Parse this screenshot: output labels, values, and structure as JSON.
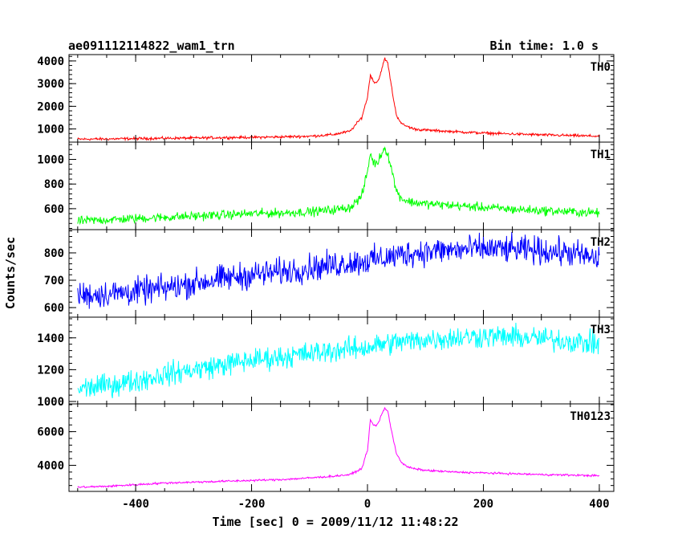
{
  "header": {
    "title": "ae091112114822_wam1_trn",
    "bin_time": "Bin time: 1.0 s"
  },
  "chart_data": {
    "type": "line",
    "xlabel": "Time [sec] 0 = 2009/11/12 11:48:22",
    "ylabel": "Counts/sec",
    "xlim": [
      -515,
      425
    ],
    "x_ticks": [
      -400,
      -200,
      0,
      200,
      400
    ],
    "x": [
      -500,
      -450,
      -400,
      -350,
      -300,
      -250,
      -200,
      -150,
      -100,
      -60,
      -30,
      -10,
      0,
      5,
      10,
      15,
      20,
      25,
      30,
      35,
      40,
      45,
      50,
      60,
      70,
      80,
      100,
      150,
      200,
      250,
      300,
      350,
      400
    ],
    "panels": [
      {
        "name": "TH0",
        "color": "#ff0000",
        "ylim": [
          420,
          4280
        ],
        "y_ticks": [
          1000,
          2000,
          3000,
          4000
        ],
        "noise": 45,
        "values": [
          550,
          560,
          575,
          590,
          600,
          620,
          630,
          650,
          680,
          750,
          900,
          1500,
          2400,
          3400,
          3100,
          3050,
          3200,
          3700,
          4100,
          3900,
          3100,
          2300,
          1600,
          1200,
          1100,
          1000,
          950,
          880,
          820,
          780,
          740,
          710,
          680
        ]
      },
      {
        "name": "TH1",
        "color": "#00ff00",
        "ylim": [
          430,
          1140
        ],
        "y_ticks": [
          600,
          800,
          1000
        ],
        "noise": 28,
        "values": [
          500,
          510,
          520,
          530,
          540,
          550,
          560,
          565,
          575,
          590,
          610,
          700,
          900,
          1050,
          980,
          960,
          1000,
          1060,
          1090,
          1050,
          950,
          850,
          740,
          680,
          660,
          650,
          640,
          625,
          610,
          595,
          585,
          575,
          565
        ]
      },
      {
        "name": "TH2",
        "color": "#0000ff",
        "ylim": [
          565,
          885
        ],
        "y_ticks": [
          600,
          700,
          800
        ],
        "noise": 38,
        "values": [
          645,
          650,
          658,
          670,
          690,
          705,
          720,
          730,
          745,
          755,
          765,
          768,
          770,
          772,
          775,
          776,
          778,
          780,
          782,
          784,
          786,
          788,
          790,
          795,
          798,
          800,
          805,
          810,
          815,
          812,
          808,
          800,
          775
        ]
      },
      {
        "name": "TH3",
        "color": "#00ffff",
        "ylim": [
          985,
          1530
        ],
        "y_ticks": [
          1000,
          1200,
          1400
        ],
        "noise": 55,
        "values": [
          1080,
          1100,
          1130,
          1170,
          1200,
          1230,
          1260,
          1280,
          1300,
          1320,
          1330,
          1335,
          1340,
          1345,
          1350,
          1352,
          1355,
          1360,
          1362,
          1365,
          1368,
          1370,
          1372,
          1375,
          1378,
          1380,
          1390,
          1400,
          1410,
          1405,
          1395,
          1380,
          1360
        ]
      },
      {
        "name": "TH0123",
        "color": "#ff00ff",
        "ylim": [
          2450,
          7650
        ],
        "y_ticks": [
          4000,
          6000
        ],
        "noise": 45,
        "values": [
          2700,
          2750,
          2850,
          2950,
          3000,
          3050,
          3100,
          3150,
          3250,
          3350,
          3450,
          3800,
          4900,
          6700,
          6400,
          6350,
          6600,
          7100,
          7400,
          7200,
          6300,
          5500,
          4700,
          4100,
          3900,
          3800,
          3700,
          3600,
          3550,
          3500,
          3450,
          3420,
          3380
        ]
      }
    ]
  }
}
